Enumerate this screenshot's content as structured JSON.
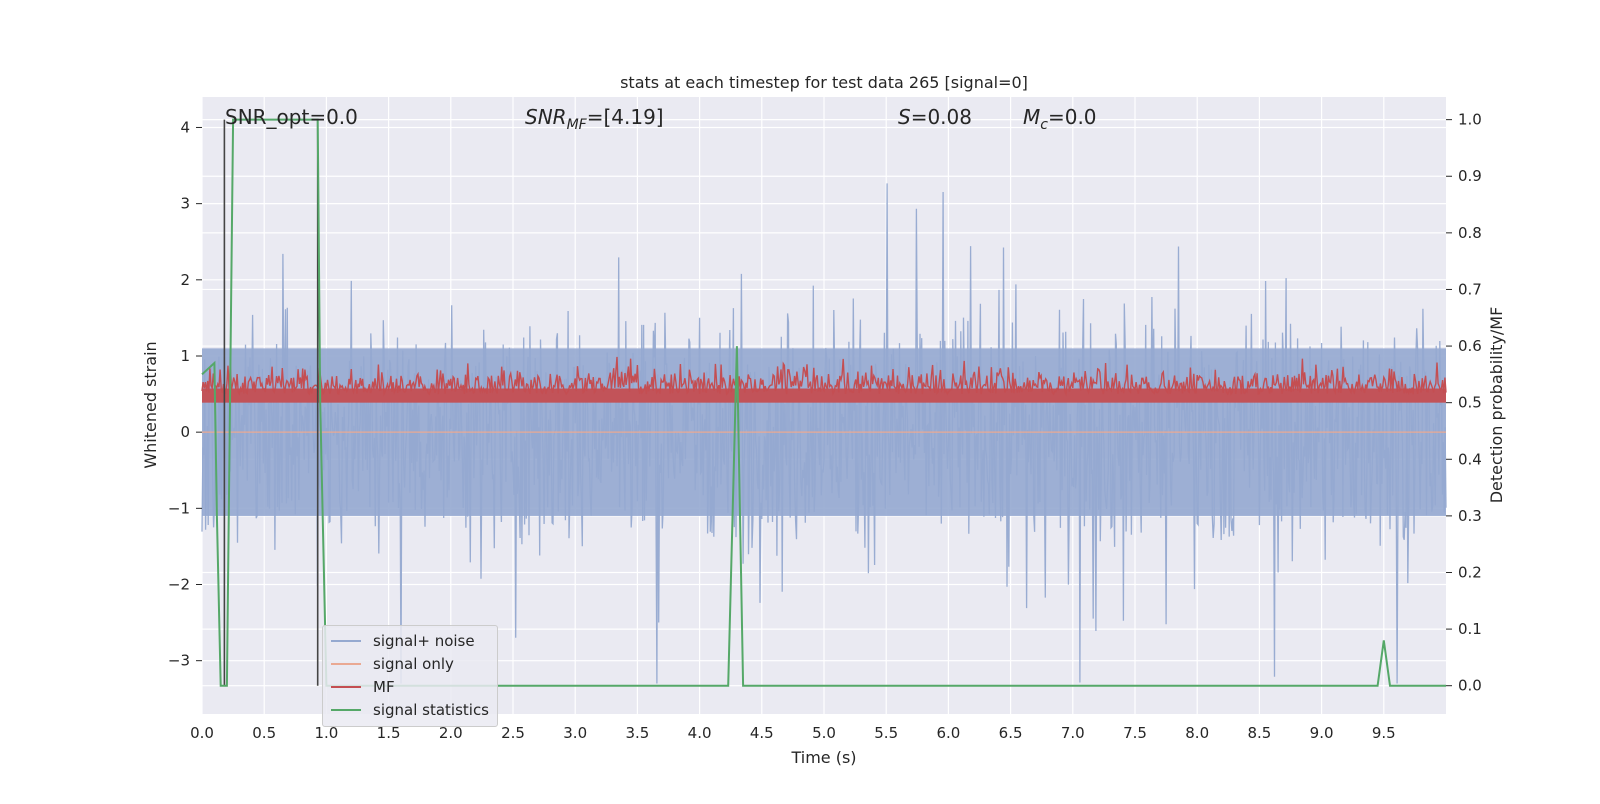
{
  "chart_data": {
    "type": "line",
    "title": "stats at each timestep for test data 265 [signal=0]",
    "xlabel": "Time (s)",
    "ylabel": "Whitened strain",
    "ylabel_right": "Detection probability/MF",
    "xlim": [
      0.0,
      10.0
    ],
    "ylim": [
      -3.7,
      4.4
    ],
    "ylim_right": [
      -0.05,
      1.04
    ],
    "x_ticks": [
      "0.0",
      "0.5",
      "1.0",
      "1.5",
      "2.0",
      "2.5",
      "3.0",
      "3.5",
      "4.0",
      "4.5",
      "5.0",
      "5.5",
      "6.0",
      "6.5",
      "7.0",
      "7.5",
      "8.0",
      "8.5",
      "9.0",
      "9.5"
    ],
    "y_ticks": [
      "−3",
      "−2",
      "−1",
      "0",
      "1",
      "2",
      "3",
      "4"
    ],
    "y_right_ticks": [
      "0.0",
      "0.1",
      "0.2",
      "0.3",
      "0.4",
      "0.5",
      "0.6",
      "0.7",
      "0.8",
      "0.9",
      "1.0"
    ],
    "annotations": {
      "snr_opt": "SNR_opt=0.0",
      "snr_mf_main": "SNR",
      "snr_mf_sub": "MF",
      "snr_mf_value": "=[4.19]",
      "s_main": "S",
      "s_value": "=0.08",
      "mc_main": "M",
      "mc_sub": "c",
      "mc_value": "=0.0"
    },
    "grid": true,
    "legend_position": "lower-left",
    "series": [
      {
        "name": "signal+ noise",
        "color": "#95a9d0",
        "description_range": [
          -3.3,
          4.0
        ]
      },
      {
        "name": "signal only",
        "color": "#eaa993",
        "values": [
          0
        ]
      },
      {
        "name": "MF",
        "color": "#c44e52",
        "range_right": [
          0.5,
          0.6
        ]
      },
      {
        "name": "signal statistics",
        "color": "#55a868",
        "x": [
          0.0,
          0.05,
          0.1,
          0.12,
          0.15,
          0.18,
          0.2,
          0.25,
          0.3,
          0.9,
          0.93,
          0.95,
          1.0,
          4.23,
          4.3,
          4.35,
          9.45,
          9.5,
          9.55,
          9.6,
          10.0
        ],
        "y": [
          0.55,
          0.56,
          0.57,
          0.3,
          0.0,
          0.0,
          0.0,
          1.0,
          1.0,
          1.0,
          1.0,
          0.5,
          0.0,
          0.0,
          0.6,
          0.0,
          0.0,
          0.08,
          0.0,
          0.0,
          0.0
        ]
      }
    ],
    "markers_x": [
      0.18,
      0.93
    ],
    "marker_color": "#444444"
  }
}
